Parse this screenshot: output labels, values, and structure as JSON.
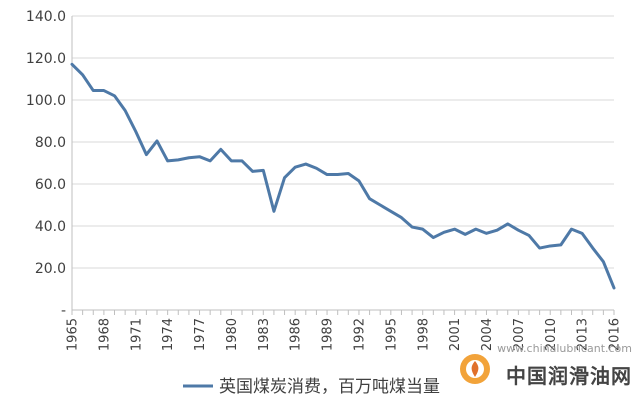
{
  "chart_data": {
    "type": "line",
    "title": "",
    "xlabel": "",
    "ylabel": "",
    "ylim": [
      0,
      140
    ],
    "yticks": [
      "-",
      "20.0",
      "40.0",
      "60.0",
      "80.0",
      "100.0",
      "120.0",
      "140.0"
    ],
    "xticks": [
      "1965",
      "1968",
      "1971",
      "1974",
      "1977",
      "1980",
      "1983",
      "1986",
      "1989",
      "1992",
      "1995",
      "1998",
      "2001",
      "2004",
      "2007",
      "2010",
      "2013",
      "2016"
    ],
    "grid": true,
    "legend_position": "bottom",
    "series": [
      {
        "name": "英国煤炭消费，百万吨煤当量",
        "color": "#4e79a7",
        "x": [
          1965,
          1966,
          1967,
          1968,
          1969,
          1970,
          1971,
          1972,
          1973,
          1974,
          1975,
          1976,
          1977,
          1978,
          1979,
          1980,
          1981,
          1982,
          1983,
          1984,
          1985,
          1986,
          1987,
          1988,
          1989,
          1990,
          1991,
          1992,
          1993,
          1994,
          1995,
          1996,
          1997,
          1998,
          1999,
          2000,
          2001,
          2002,
          2003,
          2004,
          2005,
          2006,
          2007,
          2008,
          2009,
          2010,
          2011,
          2012,
          2013,
          2014,
          2015,
          2016
        ],
        "values": [
          117,
          112,
          104.5,
          104.5,
          102,
          95,
          85,
          74,
          80.5,
          71,
          71.5,
          72.5,
          73,
          71,
          76.5,
          71,
          71,
          66,
          66.5,
          47,
          63,
          68,
          69.5,
          67.5,
          64.5,
          64.5,
          65,
          61.5,
          53,
          50,
          47,
          44,
          39.5,
          38.5,
          34.5,
          37,
          38.5,
          36,
          38.5,
          36.5,
          38,
          41,
          38,
          35.5,
          29.5,
          30.5,
          31,
          38.5,
          36.5,
          29.5,
          23,
          10.5
        ]
      }
    ]
  },
  "watermark": {
    "url": "www.chinalubricant.com",
    "site_name": "中国润滑油网"
  }
}
